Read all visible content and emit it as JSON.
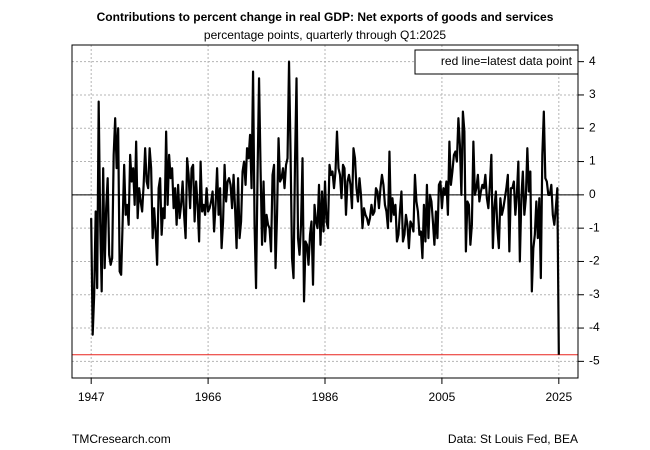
{
  "chart_data": {
    "type": "line",
    "title": "Contributions to percent change in real GDP: Net exports of goods and services",
    "subtitle": "percentage points, quarterly through Q1:2025",
    "annotation": "red line=latest data point",
    "source_left": "TMCresearch.com",
    "source_right": "Data: St Louis Fed, BEA",
    "color": "#000000",
    "latest_line_color": "#e8231d",
    "grid": true,
    "xlim": [
      1943.8,
      2028.2
    ],
    "xticks": [
      1947,
      {
        "value": 1966.5,
        "label": "1966"
      },
      1986,
      {
        "value": 2005.5,
        "label": "2005"
      },
      2025
    ],
    "ylim": [
      -5.5,
      4.5
    ],
    "yticks": [
      -5,
      -4,
      -3,
      -2,
      -1,
      0,
      1,
      2,
      3,
      4
    ],
    "x": [
      1947,
      1947.25,
      1947.5,
      1947.75,
      1948,
      1948.25,
      1948.5,
      1948.75,
      1949,
      1949.25,
      1949.5,
      1949.75,
      1950,
      1950.25,
      1950.5,
      1950.75,
      1951,
      1951.25,
      1951.5,
      1951.75,
      1952,
      1952.25,
      1952.5,
      1952.75,
      1953,
      1953.25,
      1953.5,
      1953.75,
      1954,
      1954.25,
      1954.5,
      1954.75,
      1955,
      1955.25,
      1955.5,
      1955.75,
      1956,
      1956.25,
      1956.5,
      1956.75,
      1957,
      1957.25,
      1957.5,
      1957.75,
      1958,
      1958.25,
      1958.5,
      1958.75,
      1959,
      1959.25,
      1959.5,
      1959.75,
      1960,
      1960.25,
      1960.5,
      1960.75,
      1961,
      1961.25,
      1961.5,
      1961.75,
      1962,
      1962.25,
      1962.5,
      1962.75,
      1963,
      1963.25,
      1963.5,
      1963.75,
      1964,
      1964.25,
      1964.5,
      1964.75,
      1965,
      1965.25,
      1965.5,
      1965.75,
      1966,
      1966.25,
      1966.5,
      1966.75,
      1967,
      1967.25,
      1967.5,
      1967.75,
      1968,
      1968.25,
      1968.5,
      1968.75,
      1969,
      1969.25,
      1969.5,
      1969.75,
      1970,
      1970.25,
      1970.5,
      1970.75,
      1971,
      1971.25,
      1971.5,
      1971.75,
      1972,
      1972.25,
      1972.5,
      1972.75,
      1973,
      1973.25,
      1973.5,
      1973.75,
      1974,
      1974.25,
      1974.5,
      1974.75,
      1975,
      1975.25,
      1975.5,
      1975.75,
      1976,
      1976.25,
      1976.5,
      1976.75,
      1977,
      1977.25,
      1977.5,
      1977.75,
      1978,
      1978.25,
      1978.5,
      1978.75,
      1979,
      1979.25,
      1979.5,
      1979.75,
      1980,
      1980.25,
      1980.5,
      1980.75,
      1981,
      1981.25,
      1981.5,
      1981.75,
      1982,
      1982.25,
      1982.5,
      1982.75,
      1983,
      1983.25,
      1983.5,
      1983.75,
      1984,
      1984.25,
      1984.5,
      1984.75,
      1985,
      1985.25,
      1985.5,
      1985.75,
      1986,
      1986.25,
      1986.5,
      1986.75,
      1987,
      1987.25,
      1987.5,
      1987.75,
      1988,
      1988.25,
      1988.5,
      1988.75,
      1989,
      1989.25,
      1989.5,
      1989.75,
      1990,
      1990.25,
      1990.5,
      1990.75,
      1991,
      1991.25,
      1991.5,
      1991.75,
      1992,
      1992.25,
      1992.5,
      1992.75,
      1993,
      1993.25,
      1993.5,
      1993.75,
      1994,
      1994.25,
      1994.5,
      1994.75,
      1995,
      1995.25,
      1995.5,
      1995.75,
      1996,
      1996.25,
      1996.5,
      1996.75,
      1997,
      1997.25,
      1997.5,
      1997.75,
      1998,
      1998.25,
      1998.5,
      1998.75,
      1999,
      1999.25,
      1999.5,
      1999.75,
      2000,
      2000.25,
      2000.5,
      2000.75,
      2001,
      2001.25,
      2001.5,
      2001.75,
      2002,
      2002.25,
      2002.5,
      2002.75,
      2003,
      2003.25,
      2003.5,
      2003.75,
      2004,
      2004.25,
      2004.5,
      2004.75,
      2005,
      2005.25,
      2005.5,
      2005.75,
      2006,
      2006.25,
      2006.5,
      2006.75,
      2007,
      2007.25,
      2007.5,
      2007.75,
      2008,
      2008.25,
      2008.5,
      2008.75,
      2009,
      2009.25,
      2009.5,
      2009.75,
      2010,
      2010.25,
      2010.5,
      2010.75,
      2011,
      2011.25,
      2011.5,
      2011.75,
      2012,
      2012.25,
      2012.5,
      2012.75,
      2013,
      2013.25,
      2013.5,
      2013.75,
      2014,
      2014.25,
      2014.5,
      2014.75,
      2015,
      2015.25,
      2015.5,
      2015.75,
      2016,
      2016.25,
      2016.5,
      2016.75,
      2017,
      2017.25,
      2017.5,
      2017.75,
      2018,
      2018.25,
      2018.5,
      2018.75,
      2019,
      2019.25,
      2019.5,
      2019.75,
      2020,
      2020.25,
      2020.5,
      2020.75,
      2021,
      2021.25,
      2021.5,
      2021.75,
      2022,
      2022.25,
      2022.5,
      2022.75,
      2023,
      2023.25,
      2023.5,
      2023.75,
      2024,
      2024.25,
      2024.5,
      2024.75,
      2025
    ],
    "values": [
      -0.7,
      -4.2,
      -3.0,
      -0.5,
      -2.8,
      2.8,
      -0.8,
      -2.9,
      0.8,
      -2.2,
      -0.4,
      0.5,
      -1.8,
      -2.1,
      -1.9,
      1.2,
      2.3,
      0.8,
      2.0,
      -2.3,
      -2.4,
      -0.8,
      0.9,
      -0.6,
      -0.3,
      -0.9,
      1.2,
      0.4,
      0.8,
      -0.3,
      1.6,
      -0.7,
      0.2,
      -0.2,
      -0.5,
      0.3,
      1.4,
      0.4,
      0.2,
      1.4,
      0.8,
      -1.3,
      -0.4,
      -1.1,
      -2.1,
      0.2,
      0.5,
      -1.2,
      -0.4,
      -0.7,
      1.9,
      -0.3,
      1.2,
      0.5,
      0.8,
      -0.4,
      0.2,
      -0.9,
      0.3,
      -0.7,
      -0.3,
      0.4,
      -0.6,
      -1.3,
      1.1,
      0.6,
      -0.4,
      0.8,
      0.9,
      -0.8,
      0.4,
      -0.3,
      -1.4,
      1.0,
      -0.5,
      -0.3,
      -0.6,
      0.2,
      -0.5,
      -0.4,
      -0.2,
      0.1,
      -1.1,
      -0.3,
      0.8,
      -0.6,
      0.2,
      -1.6,
      -0.8,
      0.9,
      -0.2,
      0.4,
      0.5,
      0.3,
      -0.4,
      0.6,
      -0.4,
      -1.6,
      0.5,
      -1.3,
      -0.8,
      0.7,
      1.0,
      0.3,
      1.4,
      1.1,
      1.8,
      0.2,
      3.7,
      -0.9,
      -2.8,
      0.6,
      3.5,
      0.8,
      -1.5,
      0.4,
      -1.4,
      -0.6,
      -0.9,
      -1.0,
      -1.7,
      0.6,
      0.9,
      -2.2,
      -0.6,
      1.7,
      0.4,
      0.5,
      0.8,
      0.2,
      0.9,
      1.1,
      4.0,
      1.3,
      -1.9,
      -2.5,
      1.0,
      3.5,
      -1.3,
      -1.8,
      -0.9,
      1.1,
      -3.2,
      -1.4,
      -1.5,
      -2.1,
      -1.2,
      -0.8,
      -2.7,
      -0.3,
      -0.8,
      -1.0,
      0.3,
      -1.5,
      0.1,
      -1.1,
      0.4,
      -0.8,
      -1.0,
      0.9,
      0.6,
      0.7,
      0.2,
      0.7,
      1.9,
      0.8,
      0.6,
      -0.1,
      0.9,
      0.8,
      -0.6,
      0.4,
      0.6,
      0.3,
      -0.4,
      1.4,
      1.1,
      0.2,
      -0.2,
      0.5,
      0.0,
      -1.0,
      -0.4,
      -0.6,
      -0.7,
      -0.9,
      -0.7,
      -0.3,
      -0.6,
      -0.5,
      0.2,
      0.1,
      -0.4,
      0.2,
      0.6,
      0.3,
      -0.3,
      -0.5,
      -1.0,
      1.3,
      -0.8,
      -0.1,
      -0.6,
      -0.3,
      -1.4,
      -1.2,
      -0.5,
      0.1,
      -1.4,
      -1.2,
      -0.6,
      -0.9,
      -1.6,
      -0.8,
      -0.9,
      -1.1,
      0.6,
      -0.2,
      -0.5,
      -1.2,
      -1.1,
      -1.9,
      -0.3,
      -1.4,
      0.3,
      -1.3,
      0.0,
      -0.2,
      -0.8,
      -1.5,
      -0.5,
      -1.3,
      0.3,
      0.4,
      -0.4,
      0.2,
      0.0,
      0.4,
      -0.6,
      1.6,
      0.3,
      0.7,
      1.2,
      1.3,
      1.0,
      2.3,
      1.5,
      0.0,
      2.5,
      1.9,
      -1.7,
      -0.2,
      -0.3,
      -1.5,
      -0.9,
      1.6,
      0.0,
      0.2,
      0.6,
      -0.2,
      0.1,
      0.3,
      0.2,
      0.6,
      -0.1,
      -0.4,
      0.3,
      1.2,
      -1.6,
      -0.4,
      0.1,
      -1.0,
      -1.6,
      -0.1,
      -0.6,
      -0.4,
      -0.1,
      0.2,
      0.6,
      -1.7,
      0.2,
      0.2,
      0.4,
      -0.6,
      0.0,
      1.0,
      -2.0,
      -0.1,
      0.7,
      -0.6,
      -0.1,
      1.4,
      0.1,
      0.7,
      -2.9,
      -1.6,
      -1.2,
      -0.2,
      -1.3,
      -0.1,
      -2.5,
      1.2,
      2.5,
      0.5,
      0.4,
      0.0,
      0.0,
      0.3,
      -0.6,
      -0.9,
      -0.4,
      0.2,
      -4.8
    ]
  }
}
